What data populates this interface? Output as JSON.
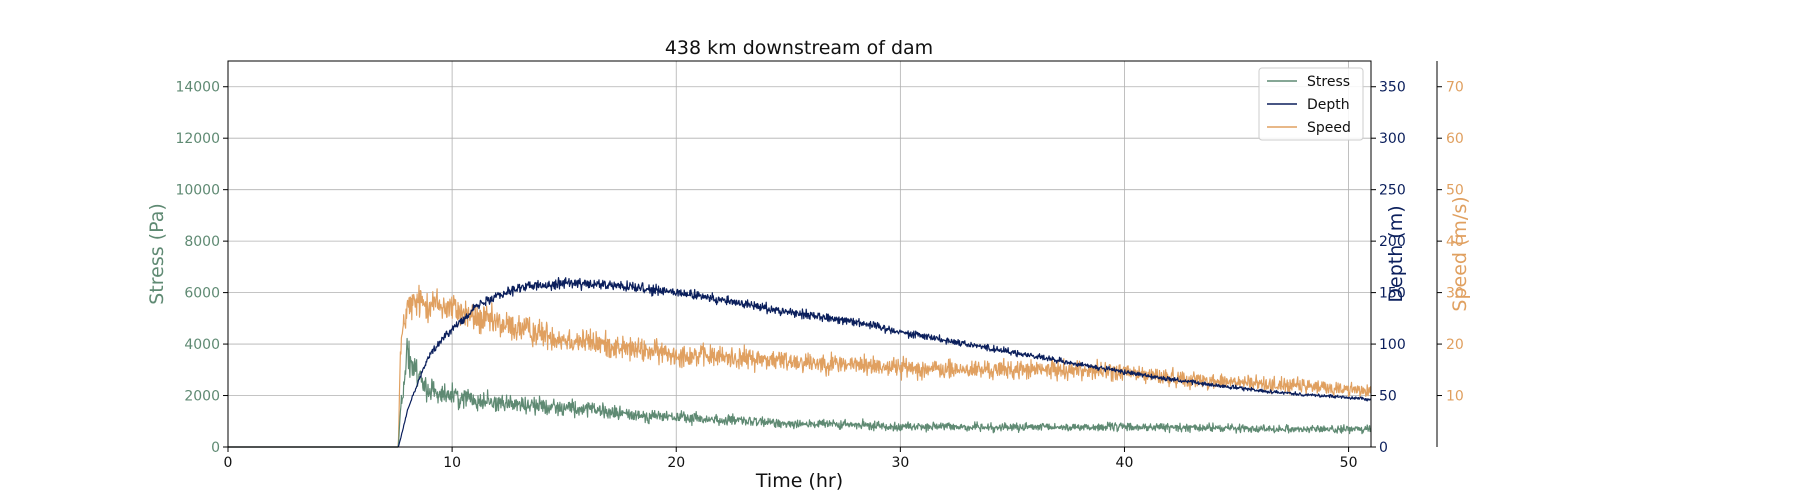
{
  "chart_data": {
    "type": "line",
    "title": "438 km downstream of dam",
    "xlabel": "Time (hr)",
    "xlim": [
      0,
      51
    ],
    "xticks": [
      0,
      10,
      20,
      30,
      40,
      50
    ],
    "grid": true,
    "legend_position": "top-right",
    "axes": {
      "stress": {
        "label": "Stress (Pa)",
        "ylim": [
          0,
          15000
        ],
        "ticks": [
          0,
          2000,
          4000,
          6000,
          8000,
          10000,
          12000,
          14000
        ],
        "color": "#5f8a73"
      },
      "depth": {
        "label": "Depth (m)",
        "ylim": [
          0,
          375
        ],
        "ticks": [
          0,
          50,
          100,
          150,
          200,
          250,
          300,
          350
        ],
        "color": "#0b1f5c"
      },
      "speed": {
        "label": "Speed (m/s)",
        "ylim": [
          0,
          75
        ],
        "ticks": [
          10,
          20,
          30,
          40,
          50,
          60,
          70
        ],
        "color": "#e0a060"
      }
    },
    "series": [
      {
        "name": "Stress",
        "axis": "stress",
        "color": "#5f8a73",
        "noise": 0.22,
        "x": [
          0,
          7.6,
          7.7,
          8.0,
          8.5,
          9,
          10,
          11,
          12,
          13,
          14,
          15,
          16,
          17,
          18,
          20,
          22,
          24,
          26,
          28,
          30,
          33,
          36,
          40,
          44,
          48,
          51
        ],
        "y": [
          0,
          0,
          1500,
          3600,
          2600,
          2200,
          2000,
          1850,
          1750,
          1650,
          1600,
          1550,
          1450,
          1350,
          1250,
          1150,
          1050,
          950,
          900,
          850,
          800,
          780,
          760,
          780,
          740,
          700,
          680
        ]
      },
      {
        "name": "Depth",
        "axis": "depth",
        "color": "#0b1f5c",
        "noise": 0.035,
        "x": [
          0,
          7.6,
          7.7,
          8.0,
          8.5,
          9,
          10,
          11,
          12,
          13,
          14,
          15,
          16,
          17,
          18,
          19,
          20,
          22,
          24,
          26,
          28,
          30,
          32,
          34,
          36,
          38,
          40,
          42,
          44,
          46,
          48,
          50,
          51
        ],
        "y": [
          0,
          0,
          8,
          35,
          65,
          90,
          115,
          135,
          148,
          155,
          157,
          160,
          158,
          157,
          155,
          152,
          150,
          143,
          135,
          128,
          122,
          112,
          104,
          96,
          88,
          80,
          73,
          66,
          60,
          55,
          51,
          48,
          46
        ]
      },
      {
        "name": "Speed",
        "axis": "speed",
        "color": "#e0a060",
        "noise": 0.13,
        "x": [
          0,
          7.6,
          7.7,
          8.0,
          8.5,
          9,
          10,
          11,
          12,
          13,
          14,
          15,
          16,
          18,
          20,
          22,
          24,
          26,
          28,
          30,
          32,
          34,
          36,
          38,
          40,
          42,
          44,
          46,
          48,
          50,
          51
        ],
        "y": [
          0,
          0,
          20,
          27,
          28,
          28,
          27,
          25,
          24,
          23,
          22,
          21,
          20.5,
          19,
          18,
          17.5,
          17,
          16.5,
          16,
          15.5,
          15,
          15,
          15,
          15,
          14.5,
          13.5,
          12.8,
          12.3,
          11.8,
          11.2,
          11
        ]
      }
    ]
  }
}
